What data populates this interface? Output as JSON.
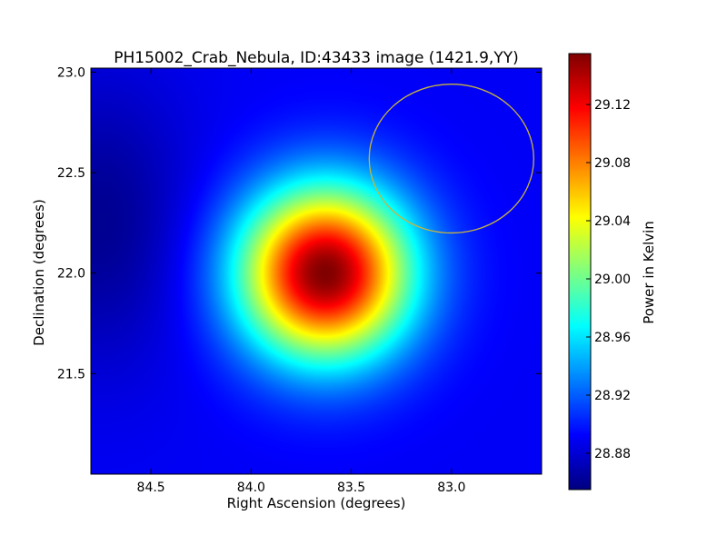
{
  "chart_data": {
    "type": "heatmap",
    "title": "PH15002_Crab_Nebula, ID:43433 image (1421.9,YY)",
    "xlabel": "Right Ascension (degrees)",
    "ylabel": "Declination (degrees)",
    "xlim": [
      84.8,
      82.55
    ],
    "ylim": [
      21.0,
      23.02
    ],
    "x_ticks": [
      84.5,
      84.0,
      83.5,
      83.0
    ],
    "x_tick_labels": [
      "84.5",
      "84.0",
      "83.5",
      "83.0"
    ],
    "y_ticks": [
      23.0,
      22.5,
      22.0,
      21.5
    ],
    "y_tick_labels": [
      "23.0",
      "22.5",
      "22.0",
      "21.5"
    ],
    "colormap": "jet",
    "colorbar": {
      "label": "Power in Kelvin",
      "range": [
        28.855,
        29.155
      ],
      "ticks": [
        28.88,
        28.92,
        28.96,
        29.0,
        29.04,
        29.08,
        29.12
      ],
      "tick_labels": [
        "28.88",
        "28.92",
        "28.96",
        "29.00",
        "29.04",
        "29.08",
        "29.12"
      ]
    },
    "peak": {
      "ra": 83.63,
      "dec": 22.0,
      "value": 29.155
    },
    "minimum": {
      "ra": 84.75,
      "dec": 22.25,
      "value": 28.86
    },
    "background_level": 28.89,
    "annotation_circle": {
      "ra": 83.0,
      "dec": 22.57,
      "radius_deg": 0.37,
      "color": "#c8b43c"
    },
    "grid": false
  }
}
